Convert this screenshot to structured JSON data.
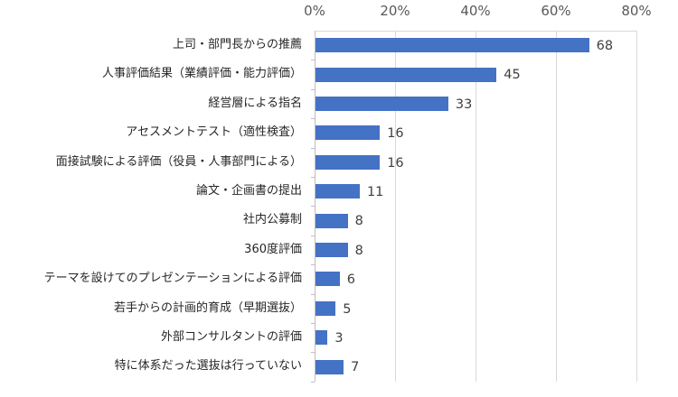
{
  "chart_data": {
    "type": "bar",
    "orientation": "horizontal",
    "title": "",
    "xlabel": "",
    "ylabel": "",
    "xlim": [
      0,
      80
    ],
    "x_ticks": [
      "0%",
      "20%",
      "40%",
      "60%",
      "80%"
    ],
    "grid": true,
    "legend": null,
    "bar_color": "#4472C4",
    "categories": [
      "上司・部門長からの推薦",
      "人事評価結果（業績評価・能力評価）",
      "経営層による指名",
      "アセスメントテスト（適性検査）",
      "面接試験による評価（役員・人事部門による）",
      "論文・企画書の提出",
      "社内公募制",
      "360度評価",
      "テーマを設けてのプレゼンテーションによる評価",
      "若手からの計画的育成（早期選抜）",
      "外部コンサルタントの評価",
      "特に体系だった選抜は行っていない"
    ],
    "values": [
      68,
      45,
      33,
      16,
      16,
      11,
      8,
      8,
      6,
      5,
      3,
      7
    ],
    "value_labels": [
      "68",
      "45",
      "33",
      "16",
      "16",
      "11",
      "8",
      "8",
      "6",
      "5",
      "3",
      "7"
    ]
  }
}
